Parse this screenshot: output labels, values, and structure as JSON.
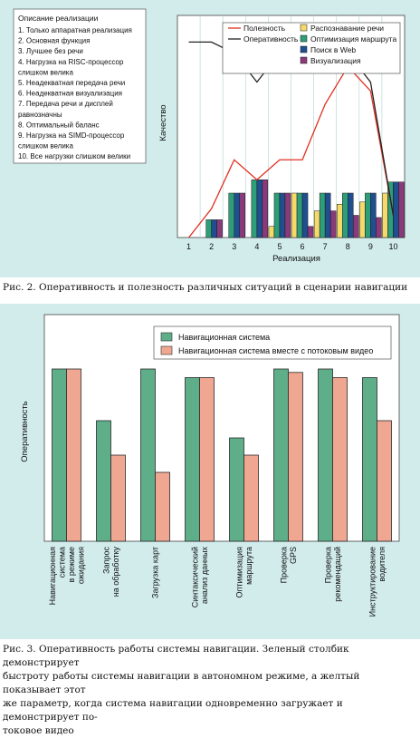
{
  "figure1": {
    "caption": "Рис. 2. Оперативность и полезность различных ситуаций в сценарии навигации",
    "box_title": "Описание реализации",
    "box_items": [
      [
        "1. Только аппаратная реализация"
      ],
      [
        "2. Основная функция"
      ],
      [
        "3. Лучшее без речи"
      ],
      [
        "4. Нагрузка на RISC-процессор",
        "слишком велика"
      ],
      [
        "5. Неадекватная передача речи"
      ],
      [
        "6. Неадекватная визуализация"
      ],
      [
        "7. Передача речи и дисплей",
        "равнозначны"
      ],
      [
        "8. Оптимальный баланс"
      ],
      [
        "9. Нагрузка на SIMD-процессор",
        "слишком велика"
      ],
      [
        "10. Все нагрузки слишком велики"
      ]
    ],
    "colors": {
      "usefulness": "#e03020",
      "responsiveness": "#222222",
      "speech": "#f6d96b",
      "route": "#2e9e78",
      "web": "#1f4f8f",
      "viz": "#8a3a7a",
      "grid": "#bcd7d7"
    },
    "chart_data": {
      "type": "bar",
      "categories": [
        "1",
        "2",
        "3",
        "4",
        "5",
        "6",
        "7",
        "8",
        "9",
        "10"
      ],
      "xlabel": "Реализация",
      "ylabel": "Качество",
      "ylim": [
        0,
        10
      ],
      "grid": true,
      "legend_position": "top-right",
      "lines": [
        {
          "name": "Полезность",
          "color_key": "usefulness",
          "values": [
            0,
            1.3,
            3.5,
            2.6,
            3.5,
            3.5,
            6.0,
            7.7,
            6.6,
            1.0
          ]
        },
        {
          "name": "Оперативность",
          "color_key": "responsiveness",
          "values": [
            8.8,
            8.8,
            8.3,
            7.0,
            8.3,
            8.3,
            8.3,
            8.3,
            7.0,
            1.0
          ]
        }
      ],
      "series": [
        {
          "name": "Распознавание речи",
          "color_key": "speech",
          "values": [
            0,
            0,
            0,
            0,
            0.5,
            2.0,
            1.2,
            1.5,
            1.6,
            2.0
          ]
        },
        {
          "name": "Оптимизация маршрута",
          "color_key": "route",
          "values": [
            0,
            0.8,
            2.0,
            2.6,
            2.0,
            2.0,
            2.0,
            2.0,
            2.0,
            2.5
          ]
        },
        {
          "name": "Поиск в Web",
          "color_key": "web",
          "values": [
            0,
            0.8,
            2.0,
            2.6,
            2.0,
            2.0,
            2.0,
            2.0,
            2.0,
            2.5
          ]
        },
        {
          "name": "Визуализация",
          "color_key": "viz",
          "values": [
            0,
            0.8,
            2.0,
            2.6,
            2.0,
            0.5,
            1.2,
            1.0,
            0.9,
            2.5
          ]
        }
      ]
    }
  },
  "figure2": {
    "caption_lines": [
      "Рис. 3. Оперативность работы системы навигации. Зеленый столбик демонстрирует",
      "быстроту работы системы навигации в автономном режиме, а желтый показывает этот",
      "же параметр, когда система навигации одновременно загружает и демонстрирует по-",
      "токовое видео"
    ],
    "colors": {
      "nav": "#5fae8a",
      "video": "#f0a792",
      "stroke": "#2a2a2a"
    },
    "chart_data": {
      "type": "bar",
      "ylabel": "Оперативность",
      "ylim": [
        0,
        10
      ],
      "legend_position": "top",
      "categories": [
        [
          "Навигационная",
          "система",
          "в режиме",
          "ожидания"
        ],
        [
          "Запрос",
          "на обработку"
        ],
        [
          "Загрузка карт"
        ],
        [
          "Синтаксический",
          "анализ данных"
        ],
        [
          "Оптимизация",
          "маршрута"
        ],
        [
          "Проверка",
          "GPS"
        ],
        [
          "Проверка",
          "рекомендаций"
        ],
        [
          "Инструктирование",
          "водителя"
        ]
      ],
      "series": [
        {
          "name": "Навигационная система",
          "color_key": "nav",
          "values": [
            10,
            7.0,
            10,
            9.5,
            6.0,
            10,
            10,
            9.5
          ]
        },
        {
          "name": "Навигационная система вместе с потоковым видео",
          "color_key": "video",
          "values": [
            10,
            5.0,
            4.0,
            9.5,
            5.0,
            9.8,
            9.5,
            7.0
          ]
        }
      ]
    }
  }
}
